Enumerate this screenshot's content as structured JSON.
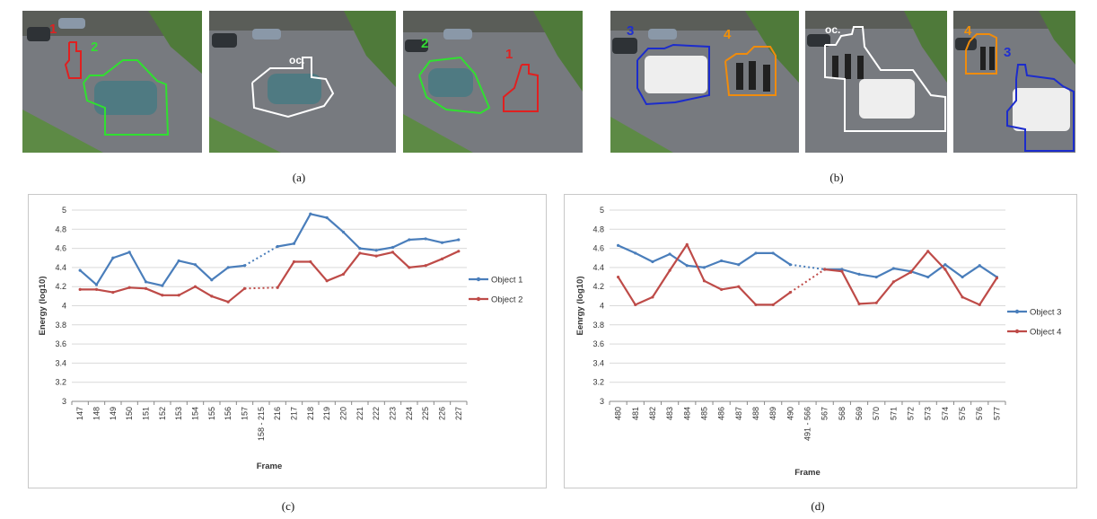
{
  "panels": [
    {
      "id": "a",
      "caption": "(a)",
      "frames": [
        {
          "labels": [
            {
              "text": "1",
              "color": "#dd2222"
            },
            {
              "text": "2",
              "color": "#33dd33"
            }
          ]
        },
        {
          "labels": [
            {
              "text": "oc.",
              "color": "#ffffff"
            }
          ]
        },
        {
          "labels": [
            {
              "text": "2",
              "color": "#33dd33"
            },
            {
              "text": "1",
              "color": "#dd2222"
            }
          ]
        }
      ]
    },
    {
      "id": "b",
      "caption": "(b)",
      "frames": [
        {
          "labels": [
            {
              "text": "3",
              "color": "#1f2fd0"
            },
            {
              "text": "4",
              "color": "#f0900a"
            }
          ]
        },
        {
          "labels": [
            {
              "text": "oc.",
              "color": "#ffffff"
            }
          ]
        },
        {
          "labels": [
            {
              "text": "4",
              "color": "#f0900a"
            },
            {
              "text": "3",
              "color": "#1f2fd0"
            }
          ]
        }
      ]
    },
    {
      "id": "c",
      "caption": "(c)"
    },
    {
      "id": "d",
      "caption": "(d)"
    }
  ],
  "chart_data": [
    {
      "type": "line",
      "panel": "c",
      "xlabel": "Frame",
      "ylabel": "Energy (log10)",
      "ylim": [
        3,
        5
      ],
      "yticks": [
        "3",
        "3.2",
        "3.4",
        "3.6",
        "3.8",
        "4",
        "4.2",
        "4.4",
        "4.6",
        "4.8",
        "5"
      ],
      "categories": [
        "147",
        "148",
        "149",
        "150",
        "151",
        "152",
        "153",
        "154",
        "155",
        "156",
        "157",
        "158 - 215",
        "216",
        "217",
        "218",
        "219",
        "220",
        "221",
        "222",
        "223",
        "224",
        "225",
        "226",
        "227"
      ],
      "gap_index": 11,
      "grid": "horizontal",
      "legend_position": "right",
      "series": [
        {
          "name": "Object 1",
          "color": "#4a7ebb",
          "values": [
            4.37,
            4.22,
            4.5,
            4.56,
            4.25,
            4.21,
            4.47,
            4.43,
            4.27,
            4.4,
            4.42,
            null,
            4.62,
            4.65,
            4.96,
            4.92,
            4.77,
            4.6,
            4.58,
            4.61,
            4.69,
            4.7,
            4.66,
            4.69
          ]
        },
        {
          "name": "Object 2",
          "color": "#be4b48",
          "values": [
            4.17,
            4.17,
            4.14,
            4.19,
            4.18,
            4.11,
            4.11,
            4.2,
            4.1,
            4.04,
            4.18,
            null,
            4.19,
            4.46,
            4.46,
            4.26,
            4.33,
            4.55,
            4.52,
            4.56,
            4.4,
            4.42,
            4.49,
            4.57
          ]
        }
      ]
    },
    {
      "type": "line",
      "panel": "d",
      "xlabel": "Frame",
      "ylabel": "Eenrgy (log10)",
      "ylim": [
        3,
        5
      ],
      "yticks": [
        "3",
        "3.2",
        "3.4",
        "3.6",
        "3.8",
        "4",
        "4.2",
        "4.4",
        "4.6",
        "4.8",
        "5"
      ],
      "categories": [
        "480",
        "481",
        "482",
        "483",
        "484",
        "485",
        "486",
        "487",
        "488",
        "489",
        "490",
        "491 - 566",
        "567",
        "568",
        "569",
        "570",
        "571",
        "572",
        "573",
        "574",
        "575",
        "576",
        "577"
      ],
      "gap_index": 11,
      "grid": "horizontal",
      "legend_position": "right",
      "series": [
        {
          "name": "Object 3",
          "color": "#4a7ebb",
          "values": [
            4.63,
            4.55,
            4.46,
            4.54,
            4.42,
            4.4,
            4.47,
            4.43,
            4.55,
            4.55,
            4.43,
            null,
            4.38,
            4.38,
            4.33,
            4.3,
            4.39,
            4.36,
            4.3,
            4.43,
            4.3,
            4.42,
            4.3
          ]
        },
        {
          "name": "Object 4",
          "color": "#be4b48",
          "values": [
            4.3,
            4.01,
            4.09,
            4.37,
            4.64,
            4.26,
            4.17,
            4.2,
            4.01,
            4.01,
            4.14,
            null,
            4.38,
            4.36,
            4.02,
            4.03,
            4.25,
            4.35,
            4.57,
            4.38,
            4.09,
            4.01,
            4.29
          ]
        }
      ]
    }
  ]
}
